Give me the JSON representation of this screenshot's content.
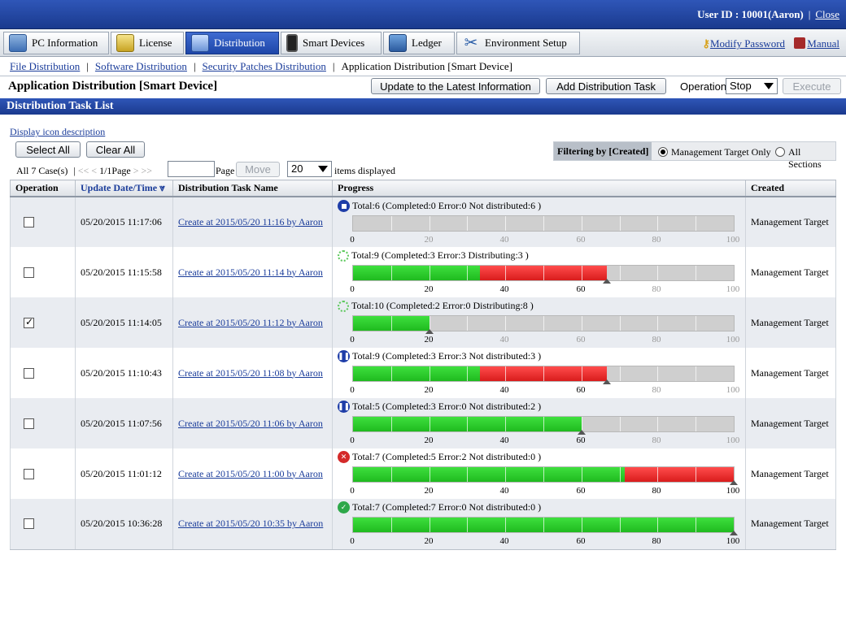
{
  "header": {
    "user_label": "User ID : ",
    "user_value": "10001(Aaron)",
    "close": "Close"
  },
  "nav": {
    "tabs": [
      {
        "label": "PC Information",
        "icon": "pc-icon"
      },
      {
        "label": "License",
        "icon": "license-icon"
      },
      {
        "label": "Distribution",
        "icon": "distribution-icon",
        "active": true
      },
      {
        "label": "Smart Devices",
        "icon": "smart-device-icon"
      },
      {
        "label": "Ledger",
        "icon": "ledger-icon"
      },
      {
        "label": "Environment Setup",
        "icon": "tools-icon"
      }
    ],
    "modify_password": "Modify Password",
    "manual": "Manual"
  },
  "breadcrumb": {
    "items": [
      "File Distribution",
      "Software Distribution",
      "Security Patches Distribution"
    ],
    "current": "Application Distribution [Smart Device]"
  },
  "page": {
    "title": "Application Distribution [Smart Device]",
    "update_button": "Update to the Latest Information",
    "add_button": "Add Distribution Task",
    "operation_label": "Operation:",
    "operation_value": "Stop",
    "execute_button": "Execute"
  },
  "section": {
    "title": "Distribution Task List"
  },
  "controls": {
    "icon_description": "Display icon description",
    "select_all": "Select All",
    "clear_all": "Clear All",
    "filter_label": "Filtering by [Created]",
    "filter_options": [
      "Management Target Only",
      "All Sections"
    ],
    "filter_selected": 0,
    "case_count": "All 7 Case(s)",
    "pager_first": "<<",
    "pager_prev": "<",
    "pager_pos": "1/1Page",
    "pager_next": ">",
    "pager_last": ">>",
    "page_input": "",
    "page_label": "Page",
    "move_button": "Move",
    "items_per_page": "20",
    "items_label": "items displayed"
  },
  "table": {
    "headers": [
      "Operation",
      "Update Date/Time",
      "Distribution Task Name",
      "Progress",
      "Created"
    ],
    "sort_mark": "⩔",
    "tick_labels": [
      "0",
      "20",
      "40",
      "60",
      "80",
      "100"
    ],
    "rows": [
      {
        "checked": false,
        "date": "05/20/2015 11:17:06",
        "name": "Create at 2015/05/20 11:16 by Aaron",
        "status": "stop",
        "summary": "Total:6  (Completed:0  Error:0  Not distributed:6 )",
        "completed_pct": 0,
        "error_pct": 0,
        "created": "Management Target"
      },
      {
        "checked": false,
        "date": "05/20/2015 11:15:58",
        "name": "Create at 2015/05/20 11:14 by Aaron",
        "status": "spin",
        "summary": "Total:9  (Completed:3  Error:3  Distributing:3 )",
        "completed_pct": 33.3,
        "error_pct": 33.3,
        "created": "Management Target"
      },
      {
        "checked": true,
        "date": "05/20/2015 11:14:05",
        "name": "Create at 2015/05/20 11:12 by Aaron",
        "status": "spin",
        "summary": "Total:10  (Completed:2  Error:0  Distributing:8 )",
        "completed_pct": 20,
        "error_pct": 0,
        "created": "Management Target"
      },
      {
        "checked": false,
        "date": "05/20/2015 11:10:43",
        "name": "Create at 2015/05/20 11:08 by Aaron",
        "status": "pause",
        "summary": "Total:9  (Completed:3  Error:3  Not distributed:3 )",
        "completed_pct": 33.3,
        "error_pct": 33.3,
        "created": "Management Target"
      },
      {
        "checked": false,
        "date": "05/20/2015 11:07:56",
        "name": "Create at 2015/05/20 11:06 by Aaron",
        "status": "pause",
        "summary": "Total:5  (Completed:3  Error:0  Not distributed:2 )",
        "completed_pct": 60,
        "error_pct": 0,
        "created": "Management Target"
      },
      {
        "checked": false,
        "date": "05/20/2015 11:01:12",
        "name": "Create at 2015/05/20 11:00 by Aaron",
        "status": "err",
        "summary": "Total:7  (Completed:5  Error:2  Not distributed:0 )",
        "completed_pct": 71.4,
        "error_pct": 28.6,
        "created": "Management Target"
      },
      {
        "checked": false,
        "date": "05/20/2015 10:36:28",
        "name": "Create at 2015/05/20 10:35 by Aaron",
        "status": "ok",
        "summary": "Total:7  (Completed:7  Error:0  Not distributed:0 )",
        "completed_pct": 100,
        "error_pct": 0,
        "created": "Management Target"
      }
    ]
  }
}
